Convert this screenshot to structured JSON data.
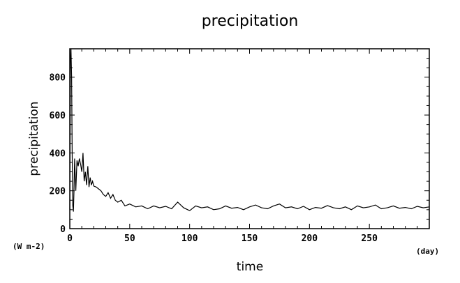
{
  "chart_data": {
    "type": "line",
    "title": "precipitation",
    "xlabel": "time",
    "ylabel": "precipitation",
    "x_unit": "(day)",
    "y_unit": "(W m-2)",
    "xlim": [
      0,
      300
    ],
    "ylim": [
      0,
      950
    ],
    "x_ticks": [
      0,
      50,
      100,
      150,
      200,
      250
    ],
    "y_ticks": [
      0,
      200,
      400,
      600,
      800
    ],
    "grid": false,
    "series": [
      {
        "x": [
          0,
          0.5,
          1,
          1.5,
          2,
          2.5,
          3,
          3.5,
          4,
          5,
          6,
          7,
          8,
          9,
          10,
          11,
          12,
          13,
          14,
          15,
          16,
          17,
          18,
          19,
          20,
          22,
          24,
          26,
          28,
          30,
          32,
          34,
          36,
          38,
          40,
          43,
          46,
          50,
          55,
          60,
          65,
          70,
          75,
          80,
          85,
          90,
          95,
          100,
          105,
          110,
          115,
          120,
          125,
          130,
          135,
          140,
          145,
          150,
          155,
          160,
          165,
          170,
          175,
          180,
          185,
          190,
          195,
          200,
          205,
          210,
          215,
          220,
          225,
          230,
          235,
          240,
          245,
          250,
          255,
          260,
          265,
          270,
          275,
          280,
          285,
          290,
          295,
          300
        ],
        "y": [
          100,
          900,
          950,
          800,
          400,
          120,
          90,
          200,
          370,
          200,
          360,
          330,
          370,
          340,
          300,
          400,
          250,
          300,
          230,
          330,
          220,
          270,
          230,
          250,
          225,
          220,
          210,
          200,
          180,
          170,
          190,
          160,
          180,
          150,
          140,
          150,
          120,
          130,
          115,
          120,
          105,
          120,
          110,
          118,
          105,
          140,
          110,
          95,
          120,
          110,
          115,
          100,
          105,
          120,
          108,
          112,
          100,
          115,
          125,
          110,
          105,
          120,
          130,
          110,
          115,
          105,
          118,
          100,
          112,
          108,
          122,
          110,
          105,
          115,
          100,
          120,
          110,
          115,
          125,
          105,
          110,
          120,
          108,
          112,
          105,
          118,
          110,
          115
        ]
      }
    ]
  }
}
